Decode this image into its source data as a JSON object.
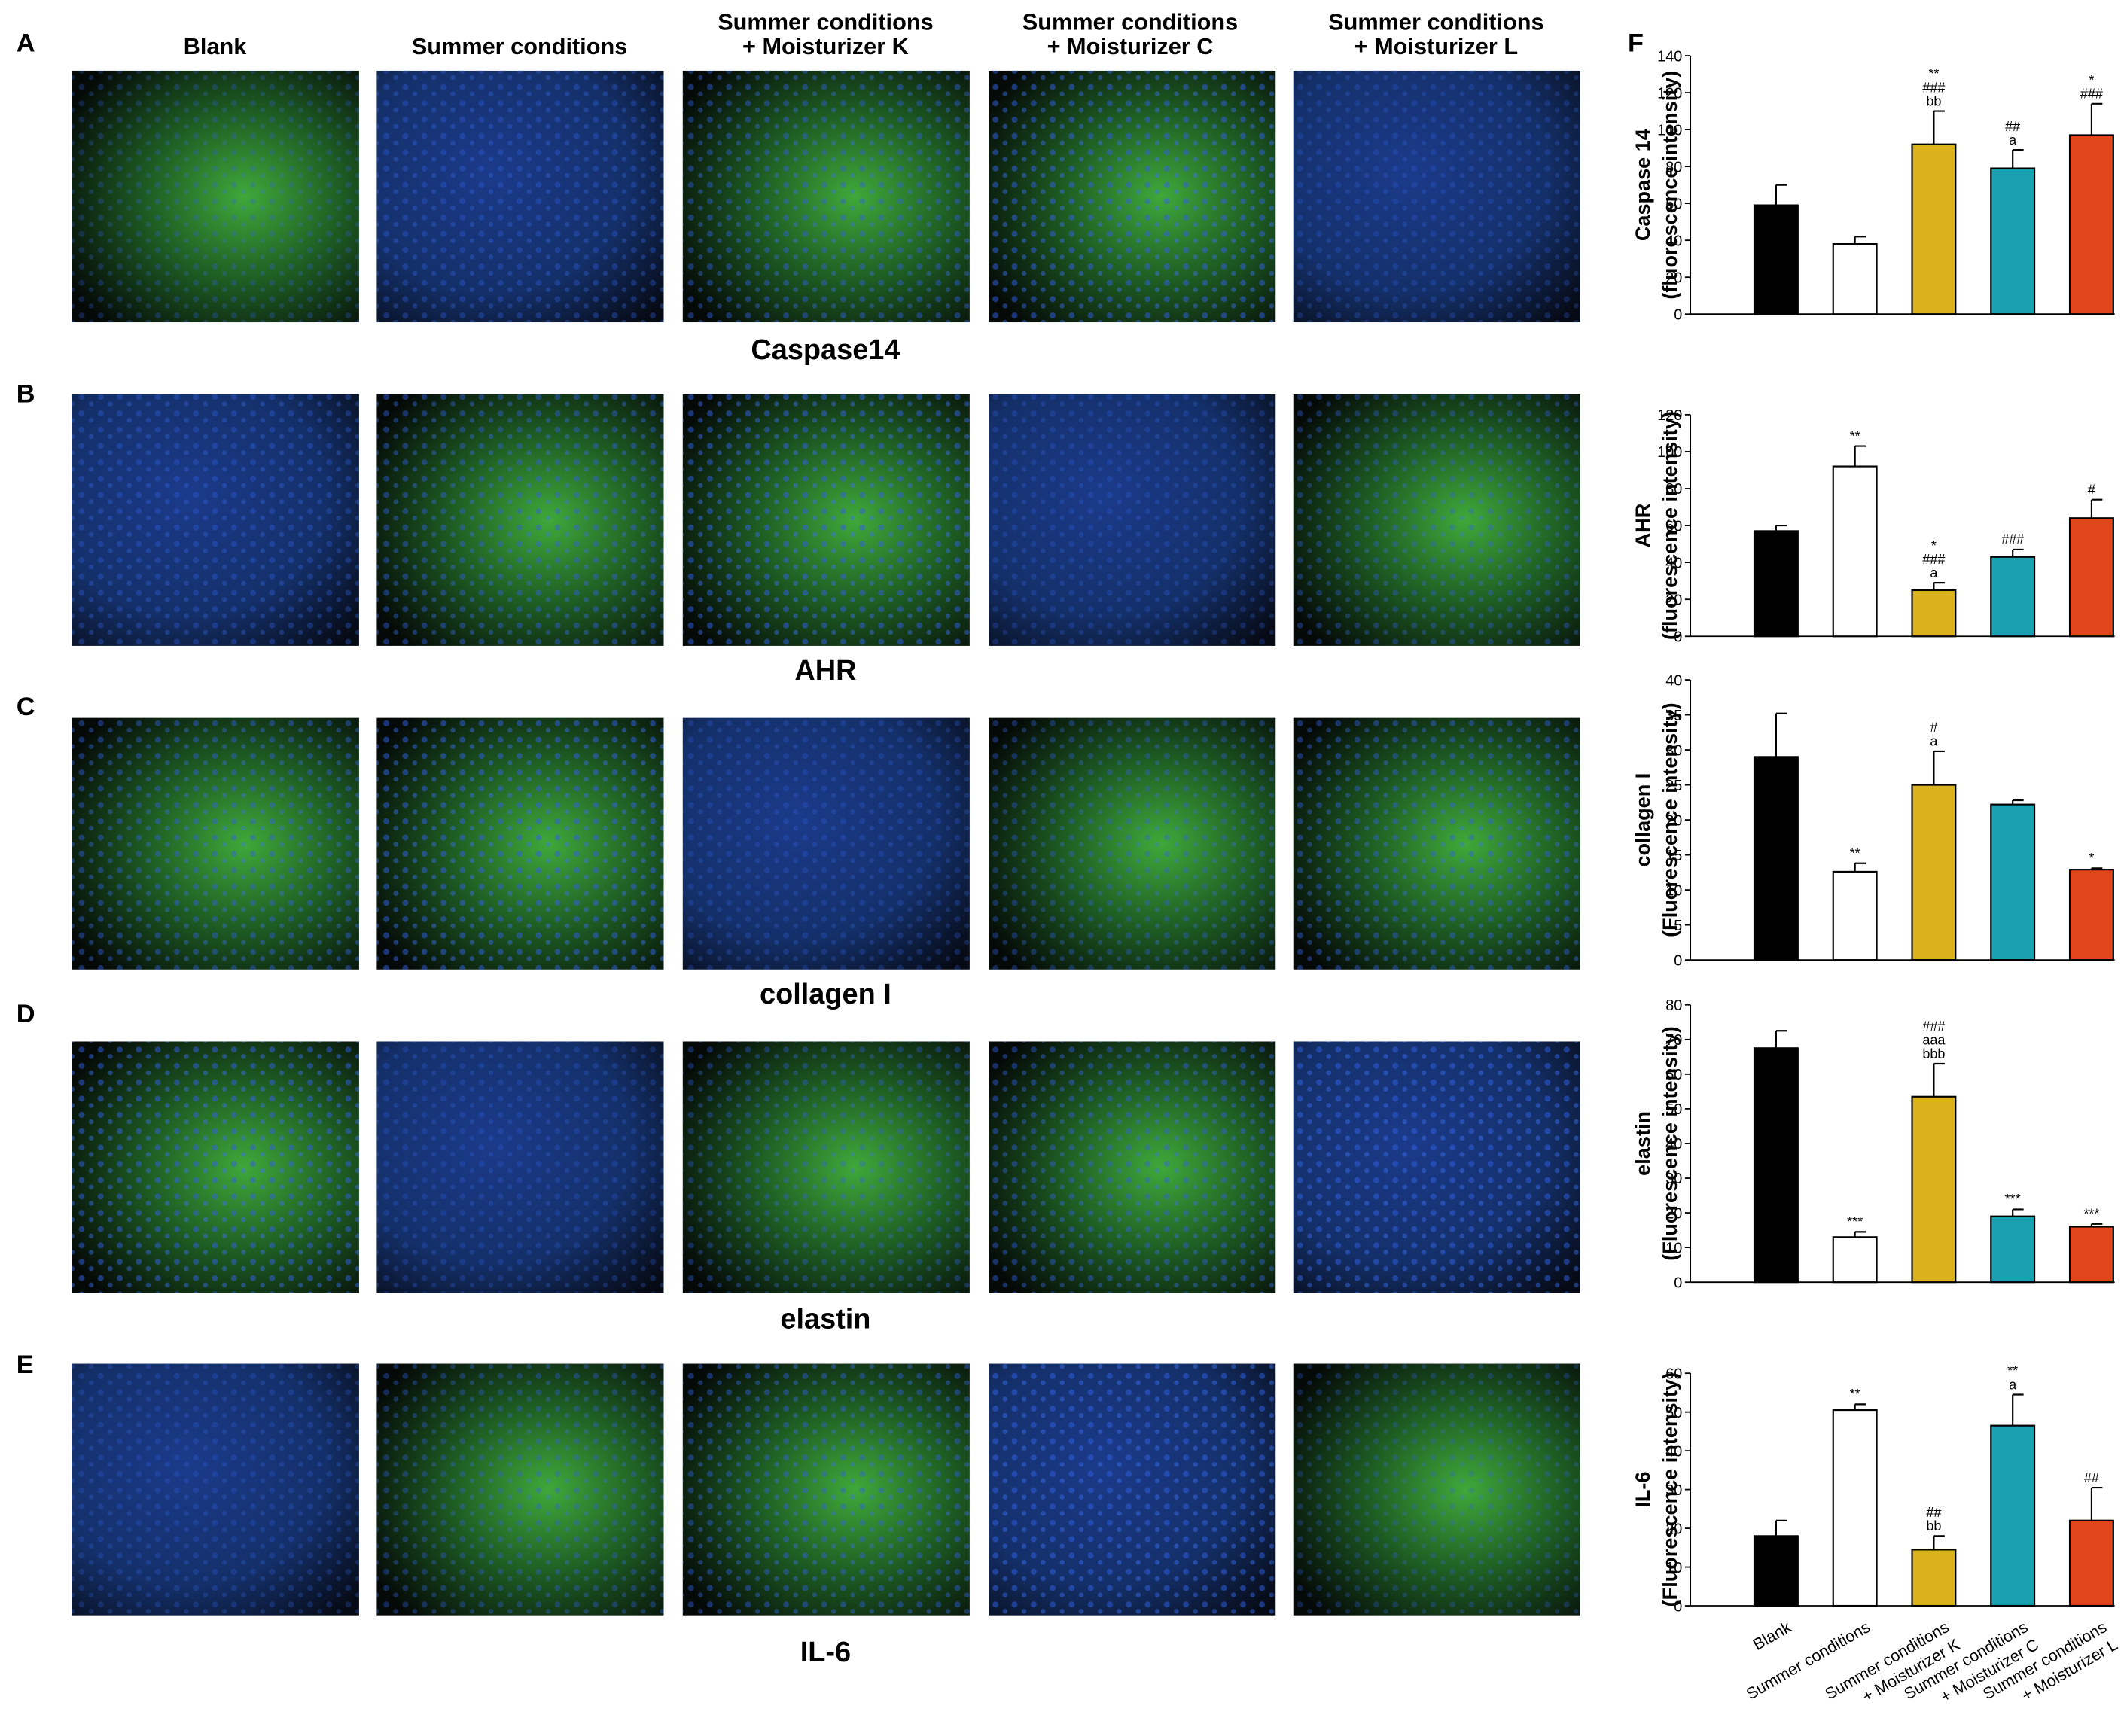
{
  "figure": {
    "panel_labels": [
      "A",
      "B",
      "C",
      "D",
      "E",
      "F"
    ],
    "column_headers": [
      [
        "Blank"
      ],
      [
        "Summer conditions"
      ],
      [
        "Summer conditions",
        "+ Moisturizer K"
      ],
      [
        "Summer conditions",
        "+ Moisturizer C"
      ],
      [
        "Summer conditions",
        "+ Moisturizer L"
      ]
    ],
    "row_labels": [
      "Caspase14",
      "AHR",
      "collagen I",
      "elastin",
      "IL-6"
    ]
  },
  "chart_data": [
    {
      "type": "bar",
      "ylabel": [
        "Caspase 14",
        "(fluorescence intensity)"
      ],
      "categories": [
        null,
        null,
        null,
        null,
        null
      ],
      "values": [
        59,
        38,
        92,
        79,
        97
      ],
      "errors": [
        11,
        4,
        18,
        10,
        17
      ],
      "colors": [
        "#000000",
        "#ffffff",
        "#d9b21c",
        "#1aa0b0",
        "#e0451c"
      ],
      "annotations": [
        [],
        [],
        [
          "**",
          "###",
          "bb"
        ],
        [
          "##",
          "a"
        ],
        [
          "*",
          "###"
        ]
      ],
      "ylim": [
        0,
        140
      ],
      "yticks": [
        0,
        20,
        40,
        60,
        80,
        100,
        120,
        140
      ]
    },
    {
      "type": "bar",
      "ylabel": [
        "AHR",
        "(fluorescence intensity)"
      ],
      "categories": [
        null,
        null,
        null,
        null,
        null
      ],
      "values": [
        57,
        92,
        25,
        43,
        64
      ],
      "errors": [
        3,
        11,
        4,
        4,
        10
      ],
      "colors": [
        "#000000",
        "#ffffff",
        "#d9b21c",
        "#1aa0b0",
        "#e0451c"
      ],
      "annotations": [
        [],
        [
          "**"
        ],
        [
          "*",
          "###",
          "a"
        ],
        [
          "###"
        ],
        [
          "#"
        ]
      ],
      "ylim": [
        0,
        120
      ],
      "yticks": [
        0,
        20,
        40,
        60,
        80,
        100,
        120
      ]
    },
    {
      "type": "bar",
      "ylabel": [
        "collagen I",
        "(Fluorescence intensity)"
      ],
      "categories": [
        null,
        null,
        null,
        null,
        null
      ],
      "values": [
        29,
        12.6,
        25,
        22.2,
        12.9
      ],
      "errors": [
        6.2,
        1.2,
        4.8,
        0.6,
        0.2
      ],
      "colors": [
        "#000000",
        "#ffffff",
        "#d9b21c",
        "#1aa0b0",
        "#e0451c"
      ],
      "annotations": [
        [],
        [
          "**"
        ],
        [
          "#",
          "a"
        ],
        [],
        [
          "*"
        ]
      ],
      "ylim": [
        0,
        40
      ],
      "yticks": [
        0,
        5,
        10,
        15,
        20,
        25,
        30,
        35,
        40
      ]
    },
    {
      "type": "bar",
      "ylabel": [
        "elastin",
        "(Fluorescence intensity)"
      ],
      "categories": [
        null,
        null,
        null,
        null,
        null
      ],
      "values": [
        67.5,
        13,
        53.5,
        19,
        16
      ],
      "errors": [
        5,
        1.5,
        9.5,
        2,
        0.8
      ],
      "colors": [
        "#000000",
        "#ffffff",
        "#d9b21c",
        "#1aa0b0",
        "#e0451c"
      ],
      "annotations": [
        [],
        [
          "***"
        ],
        [
          "###",
          "aaa",
          "bbb"
        ],
        [
          "***"
        ],
        [
          "***"
        ]
      ],
      "ylim": [
        0,
        80
      ],
      "yticks": [
        0,
        10,
        20,
        30,
        40,
        50,
        60,
        70,
        80
      ]
    },
    {
      "type": "bar",
      "ylabel": [
        "IL-6",
        "(Fluorescence intensity)"
      ],
      "categories": [
        [
          "Blank"
        ],
        [
          "Summer conditions"
        ],
        [
          "Summer conditions",
          "+ Moisturizer K"
        ],
        [
          "Summer conditions",
          "+ Moisturizer C"
        ],
        [
          "Summer conditions",
          "+ Moisturizer L"
        ]
      ],
      "values": [
        18,
        50.5,
        14.5,
        46.5,
        22
      ],
      "errors": [
        4,
        1.5,
        3.5,
        8,
        8.5
      ],
      "colors": [
        "#000000",
        "#ffffff",
        "#d9b21c",
        "#1aa0b0",
        "#e0451c"
      ],
      "annotations": [
        [],
        [
          "**"
        ],
        [
          "##",
          "bb"
        ],
        [
          "**",
          "a"
        ],
        [
          "##"
        ]
      ],
      "ylim": [
        0,
        60
      ],
      "yticks": [
        0,
        10,
        20,
        30,
        40,
        50,
        60
      ]
    }
  ]
}
